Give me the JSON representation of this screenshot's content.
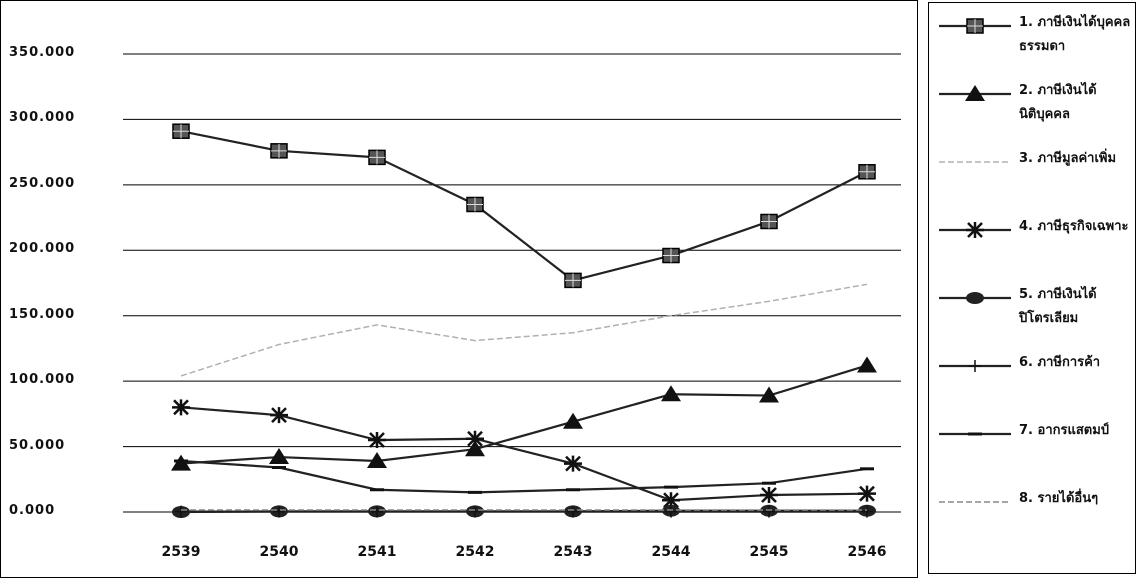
{
  "chart_data": {
    "type": "line",
    "categories": [
      "2539",
      "2540",
      "2541",
      "2542",
      "2543",
      "2544",
      "2545",
      "2546"
    ],
    "ylim": [
      0,
      350
    ],
    "y_ticks": [
      "0.000",
      "50.000",
      "100.000",
      "150.000",
      "200.000",
      "250.000",
      "300.000",
      "350.000"
    ],
    "grid": "horizontal",
    "legend_position": "right",
    "series": [
      {
        "name": "1. ภาษีเงินได้บุคคลธรรมดา",
        "marker": "square",
        "color": "#222222",
        "values": [
          291,
          276,
          271,
          235,
          177,
          196,
          222,
          260
        ]
      },
      {
        "name": "2. ภาษีเงินได้นิติบุคคล",
        "marker": "triangle",
        "color": "#222222",
        "values": [
          37,
          42,
          39,
          48,
          69,
          90,
          89,
          112
        ]
      },
      {
        "name": "3. ภาษีมูลค่าเพิ่ม",
        "marker": "none",
        "color": "#b0b0b0",
        "values": [
          104,
          128,
          143,
          131,
          137,
          150,
          161,
          174
        ]
      },
      {
        "name": "4. ภาษีธุรกิจเฉพาะ",
        "marker": "star",
        "color": "#222222",
        "values": [
          80,
          74,
          55,
          56,
          37,
          9,
          13,
          14
        ]
      },
      {
        "name": "5. ภาษีเงินได้ปิโตรเลียม",
        "marker": "circle",
        "color": "#222222",
        "values": [
          0,
          0.5,
          0.5,
          0.5,
          0.5,
          1,
          1,
          1
        ]
      },
      {
        "name": "6. ภาษีการค้า",
        "marker": "plus",
        "color": "#222222",
        "values": [
          0.3,
          0.3,
          0.3,
          0.3,
          0.3,
          0.3,
          0.3,
          0.3
        ]
      },
      {
        "name": "7. อากรแสตมป์",
        "marker": "dash",
        "color": "#222222",
        "values": [
          39,
          34,
          17,
          15,
          17,
          19,
          22,
          33
        ]
      },
      {
        "name": "8. รายได้อื่นๆ",
        "marker": "none",
        "color": "#888888",
        "values": [
          1.5,
          1.5,
          1.5,
          1.5,
          1.5,
          1.5,
          1.5,
          1.5
        ]
      }
    ]
  }
}
